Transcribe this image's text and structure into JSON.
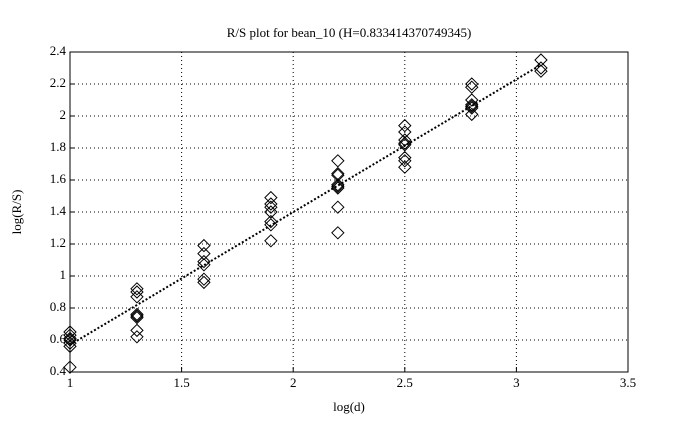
{
  "chart_data": {
    "type": "scatter",
    "title": "R/S plot for bean_10 (H=0.833414370749345)",
    "x_label": "log(d)",
    "y_label": "log(R/S)",
    "xlim": [
      1,
      3.5
    ],
    "ylim": [
      0.4,
      2.4
    ],
    "xticks": [
      1,
      1.5,
      2,
      2.5,
      3,
      3.5
    ],
    "yticks": [
      0.4,
      0.6,
      0.8,
      1,
      1.2,
      1.4,
      1.6,
      1.8,
      2,
      2.2,
      2.4
    ],
    "grid": true,
    "color": "#000000",
    "x": [
      1,
      1,
      1,
      1,
      1,
      1,
      1,
      1.3,
      1.3,
      1.3,
      1.3,
      1.3,
      1.3,
      1.3,
      1.3,
      1.6,
      1.6,
      1.6,
      1.6,
      1.6,
      1.6,
      1.9,
      1.9,
      1.9,
      1.9,
      1.9,
      1.9,
      1.9,
      2.2,
      2.2,
      2.2,
      2.2,
      2.2,
      2.2,
      2.2,
      2.2,
      2.5,
      2.5,
      2.5,
      2.5,
      2.5,
      2.5,
      2.5,
      2.5,
      2.8,
      2.8,
      2.8,
      2.8,
      2.8,
      2.8,
      2.8,
      3.11,
      3.11,
      3.11
    ],
    "y": [
      0.65,
      0.63,
      0.61,
      0.6,
      0.58,
      0.56,
      0.43,
      0.92,
      0.9,
      0.87,
      0.76,
      0.75,
      0.74,
      0.66,
      0.62,
      1.19,
      1.14,
      1.09,
      1.07,
      0.98,
      0.96,
      1.49,
      1.45,
      1.43,
      1.4,
      1.34,
      1.32,
      1.22,
      1.72,
      1.64,
      1.63,
      1.57,
      1.56,
      1.55,
      1.43,
      1.27,
      1.94,
      1.9,
      1.85,
      1.83,
      1.82,
      1.74,
      1.72,
      1.68,
      2.2,
      2.18,
      2.1,
      2.07,
      2.06,
      2.05,
      2.01,
      2.35,
      2.3,
      2.28
    ],
    "fit_line": {
      "x": [
        1,
        3.11
      ],
      "y": [
        0.57,
        2.32
      ]
    }
  }
}
